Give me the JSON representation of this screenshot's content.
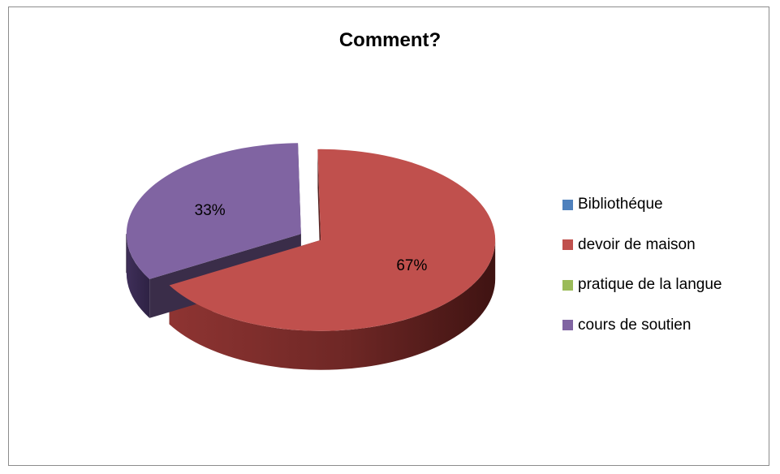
{
  "chart_data": {
    "type": "pie",
    "title": "Comment?",
    "categories": [
      "Bibliothéque",
      "devoir de maison",
      "pratique de la langue",
      "cours de soutien"
    ],
    "values": [
      0,
      67,
      0,
      33
    ],
    "labels": [
      "",
      "",
      "",
      "33%"
    ],
    "data_labels": [
      "",
      "67%",
      "",
      "33%"
    ],
    "colors": [
      "#4F81BD",
      "#C0504D",
      "#9BBB59",
      "#8064A2"
    ],
    "legend_position": "right",
    "three_d": true,
    "exploded": true
  }
}
